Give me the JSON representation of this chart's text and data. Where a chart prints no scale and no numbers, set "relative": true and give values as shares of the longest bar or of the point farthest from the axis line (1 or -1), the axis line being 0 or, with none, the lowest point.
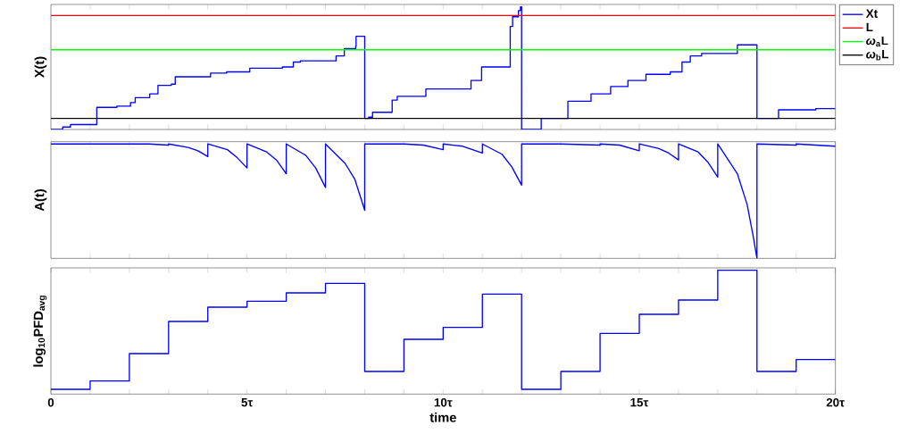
{
  "chart_data": [
    {
      "type": "step",
      "ylabel": "X(t)",
      "relative": true,
      "xlim": [
        0,
        20
      ],
      "tick_labels": false,
      "legend": "top right",
      "xticks": [
        {
          "value": 1,
          "label": null
        },
        {
          "value": 2,
          "label": null
        },
        {
          "value": 3,
          "label": null
        },
        {
          "value": 4,
          "label": null
        },
        {
          "value": 5,
          "label": null
        },
        {
          "value": 6,
          "label": null
        },
        {
          "value": 7,
          "label": null
        },
        {
          "value": 8,
          "label": null
        },
        {
          "value": 9,
          "label": null
        },
        {
          "value": 10,
          "label": null
        },
        {
          "value": 11,
          "label": null
        },
        {
          "value": 12,
          "label": null
        },
        {
          "value": 13,
          "label": null
        },
        {
          "value": 14,
          "label": null
        },
        {
          "value": 15,
          "label": null
        },
        {
          "value": 16,
          "label": null
        },
        {
          "value": 17,
          "label": null
        },
        {
          "value": 18,
          "label": null
        },
        {
          "value": 19,
          "label": null
        },
        {
          "value": 20,
          "label": null
        }
      ],
      "series": [
        {
          "name": "Xt",
          "color": "#0000ff",
          "x": [
            0,
            0.3,
            0.5,
            1.17,
            1.68,
            2.03,
            2.15,
            2.52,
            2.73,
            3.07,
            3.17,
            4.07,
            4.48,
            5.07,
            5.9,
            6.18,
            6.36,
            7.27,
            7.48,
            7.77,
            7.78,
            8,
            8.1,
            8.2,
            8.7,
            8.83,
            9.56,
            10.71,
            10.98,
            11.71,
            11.77,
            11.92,
            11.97,
            12,
            12.5,
            13.18,
            13.77,
            14.27,
            14.71,
            15.17,
            15.79,
            16.09,
            16.3,
            16.59,
            17.5,
            18,
            18.55,
            19.5,
            20
          ],
          "values": [
            0,
            0.02,
            0.04,
            0.18,
            0.19,
            0.22,
            0.26,
            0.29,
            0.36,
            0.37,
            0.43,
            0.46,
            0.47,
            0.5,
            0.51,
            0.55,
            0.56,
            0.6,
            0.66,
            0.68,
            0.76,
            0.09,
            0.1,
            0.14,
            0.24,
            0.27,
            0.33,
            0.4,
            0.51,
            0.84,
            0.92,
            0.97,
            1,
            0,
            0.09,
            0.23,
            0.29,
            0.35,
            0.4,
            0.45,
            0.47,
            0.55,
            0.6,
            0.62,
            0.69,
            0.09,
            0.16,
            0.17,
            0.17
          ]
        }
      ],
      "ref_lines": [
        {
          "axis": "y",
          "value": 0.93,
          "label": "L",
          "color": "#ff0000"
        },
        {
          "axis": "y",
          "value": 0.65,
          "label": "*ω*$_{a}$L",
          "color": "#00ff00"
        },
        {
          "axis": "y",
          "value": 0.09,
          "label": "*ω*$_{b}$L",
          "color": "#000000"
        }
      ]
    },
    {
      "type": "line",
      "ylabel": "A(t)",
      "relative": true,
      "xlim": [
        0,
        20
      ],
      "tick_labels": false,
      "xticks": [
        {
          "value": 1,
          "label": null
        },
        {
          "value": 2,
          "label": null
        },
        {
          "value": 3,
          "label": null
        },
        {
          "value": 4,
          "label": null
        },
        {
          "value": 5,
          "label": null
        },
        {
          "value": 6,
          "label": null
        },
        {
          "value": 7,
          "label": null
        },
        {
          "value": 8,
          "label": null
        },
        {
          "value": 9,
          "label": null
        },
        {
          "value": 10,
          "label": null
        },
        {
          "value": 11,
          "label": null
        },
        {
          "value": 12,
          "label": null
        },
        {
          "value": 13,
          "label": null
        },
        {
          "value": 14,
          "label": null
        },
        {
          "value": 15,
          "label": null
        },
        {
          "value": 16,
          "label": null
        },
        {
          "value": 17,
          "label": null
        },
        {
          "value": 18,
          "label": null
        },
        {
          "value": 19,
          "label": null
        },
        {
          "value": 20,
          "label": null
        }
      ],
      "series": [
        {
          "color": "#0000ff",
          "x": [
            0,
            2,
            2.5,
            3,
            3,
            3.5,
            3.75,
            4,
            4,
            4.5,
            4.75,
            5,
            5,
            5.5,
            5.75,
            6,
            6,
            6.5,
            6.75,
            7,
            7,
            7.5,
            7.75,
            8,
            8,
            9,
            9.5,
            10,
            10,
            10.5,
            11,
            11,
            11.5,
            11.75,
            12,
            12,
            13,
            14,
            14,
            14.5,
            15,
            15,
            15.5,
            15.75,
            16,
            16,
            16.5,
            16.75,
            17,
            17,
            17.5,
            17.75,
            17.9,
            18,
            18,
            19,
            19,
            20
          ],
          "values": [
            1,
            1,
            1,
            0.99,
            1,
            0.97,
            0.94,
            0.89,
            1,
            0.95,
            0.88,
            0.79,
            1,
            0.93,
            0.86,
            0.74,
            1,
            0.9,
            0.79,
            0.62,
            1,
            0.83,
            0.69,
            0.42,
            1,
            1,
            0.99,
            0.95,
            1,
            0.98,
            0.92,
            1,
            0.91,
            0.8,
            0.64,
            1,
            1,
            0.99,
            1,
            0.99,
            0.94,
            1,
            0.96,
            0.92,
            0.86,
            1,
            0.93,
            0.84,
            0.71,
            1,
            0.74,
            0.47,
            0.2,
            0,
            1,
            0.99,
            1,
            0.98
          ]
        }
      ]
    },
    {
      "type": "step",
      "ylabel": "log$_{10}$PFD$_{avg}$",
      "xlabel": "time",
      "relative": true,
      "xlim": [
        0,
        20
      ],
      "tick_labels": "x",
      "xticks": [
        0,
        {
          "value": 1,
          "label": null
        },
        {
          "value": 2,
          "label": null
        },
        {
          "value": 3,
          "label": null
        },
        {
          "value": 4,
          "label": null
        },
        {
          "value": 5,
          "label": "5τ"
        },
        {
          "value": 6,
          "label": null
        },
        {
          "value": 7,
          "label": null
        },
        {
          "value": 8,
          "label": null
        },
        {
          "value": 9,
          "label": null
        },
        {
          "value": 10,
          "label": "10τ"
        },
        {
          "value": 11,
          "label": null
        },
        {
          "value": 12,
          "label": null
        },
        {
          "value": 13,
          "label": null
        },
        {
          "value": 14,
          "label": null
        },
        {
          "value": 15,
          "label": "15τ"
        },
        {
          "value": 16,
          "label": null
        },
        {
          "value": 17,
          "label": null
        },
        {
          "value": 18,
          "label": null
        },
        {
          "value": 19,
          "label": null
        },
        {
          "value": 20,
          "label": "20τ"
        }
      ],
      "series": [
        {
          "color": "#0000ff",
          "x": [
            0,
            1,
            2,
            3,
            4,
            5,
            6,
            7,
            8,
            9,
            10,
            11,
            12,
            13,
            14,
            15,
            16,
            17,
            18,
            19,
            20
          ],
          "values": [
            0,
            0.07,
            0.3,
            0.57,
            0.69,
            0.74,
            0.81,
            0.89,
            0.15,
            0.42,
            0.52,
            0.8,
            0,
            0.15,
            0.47,
            0.63,
            0.75,
            1,
            0.15,
            0.25,
            0.25
          ]
        }
      ]
    }
  ]
}
